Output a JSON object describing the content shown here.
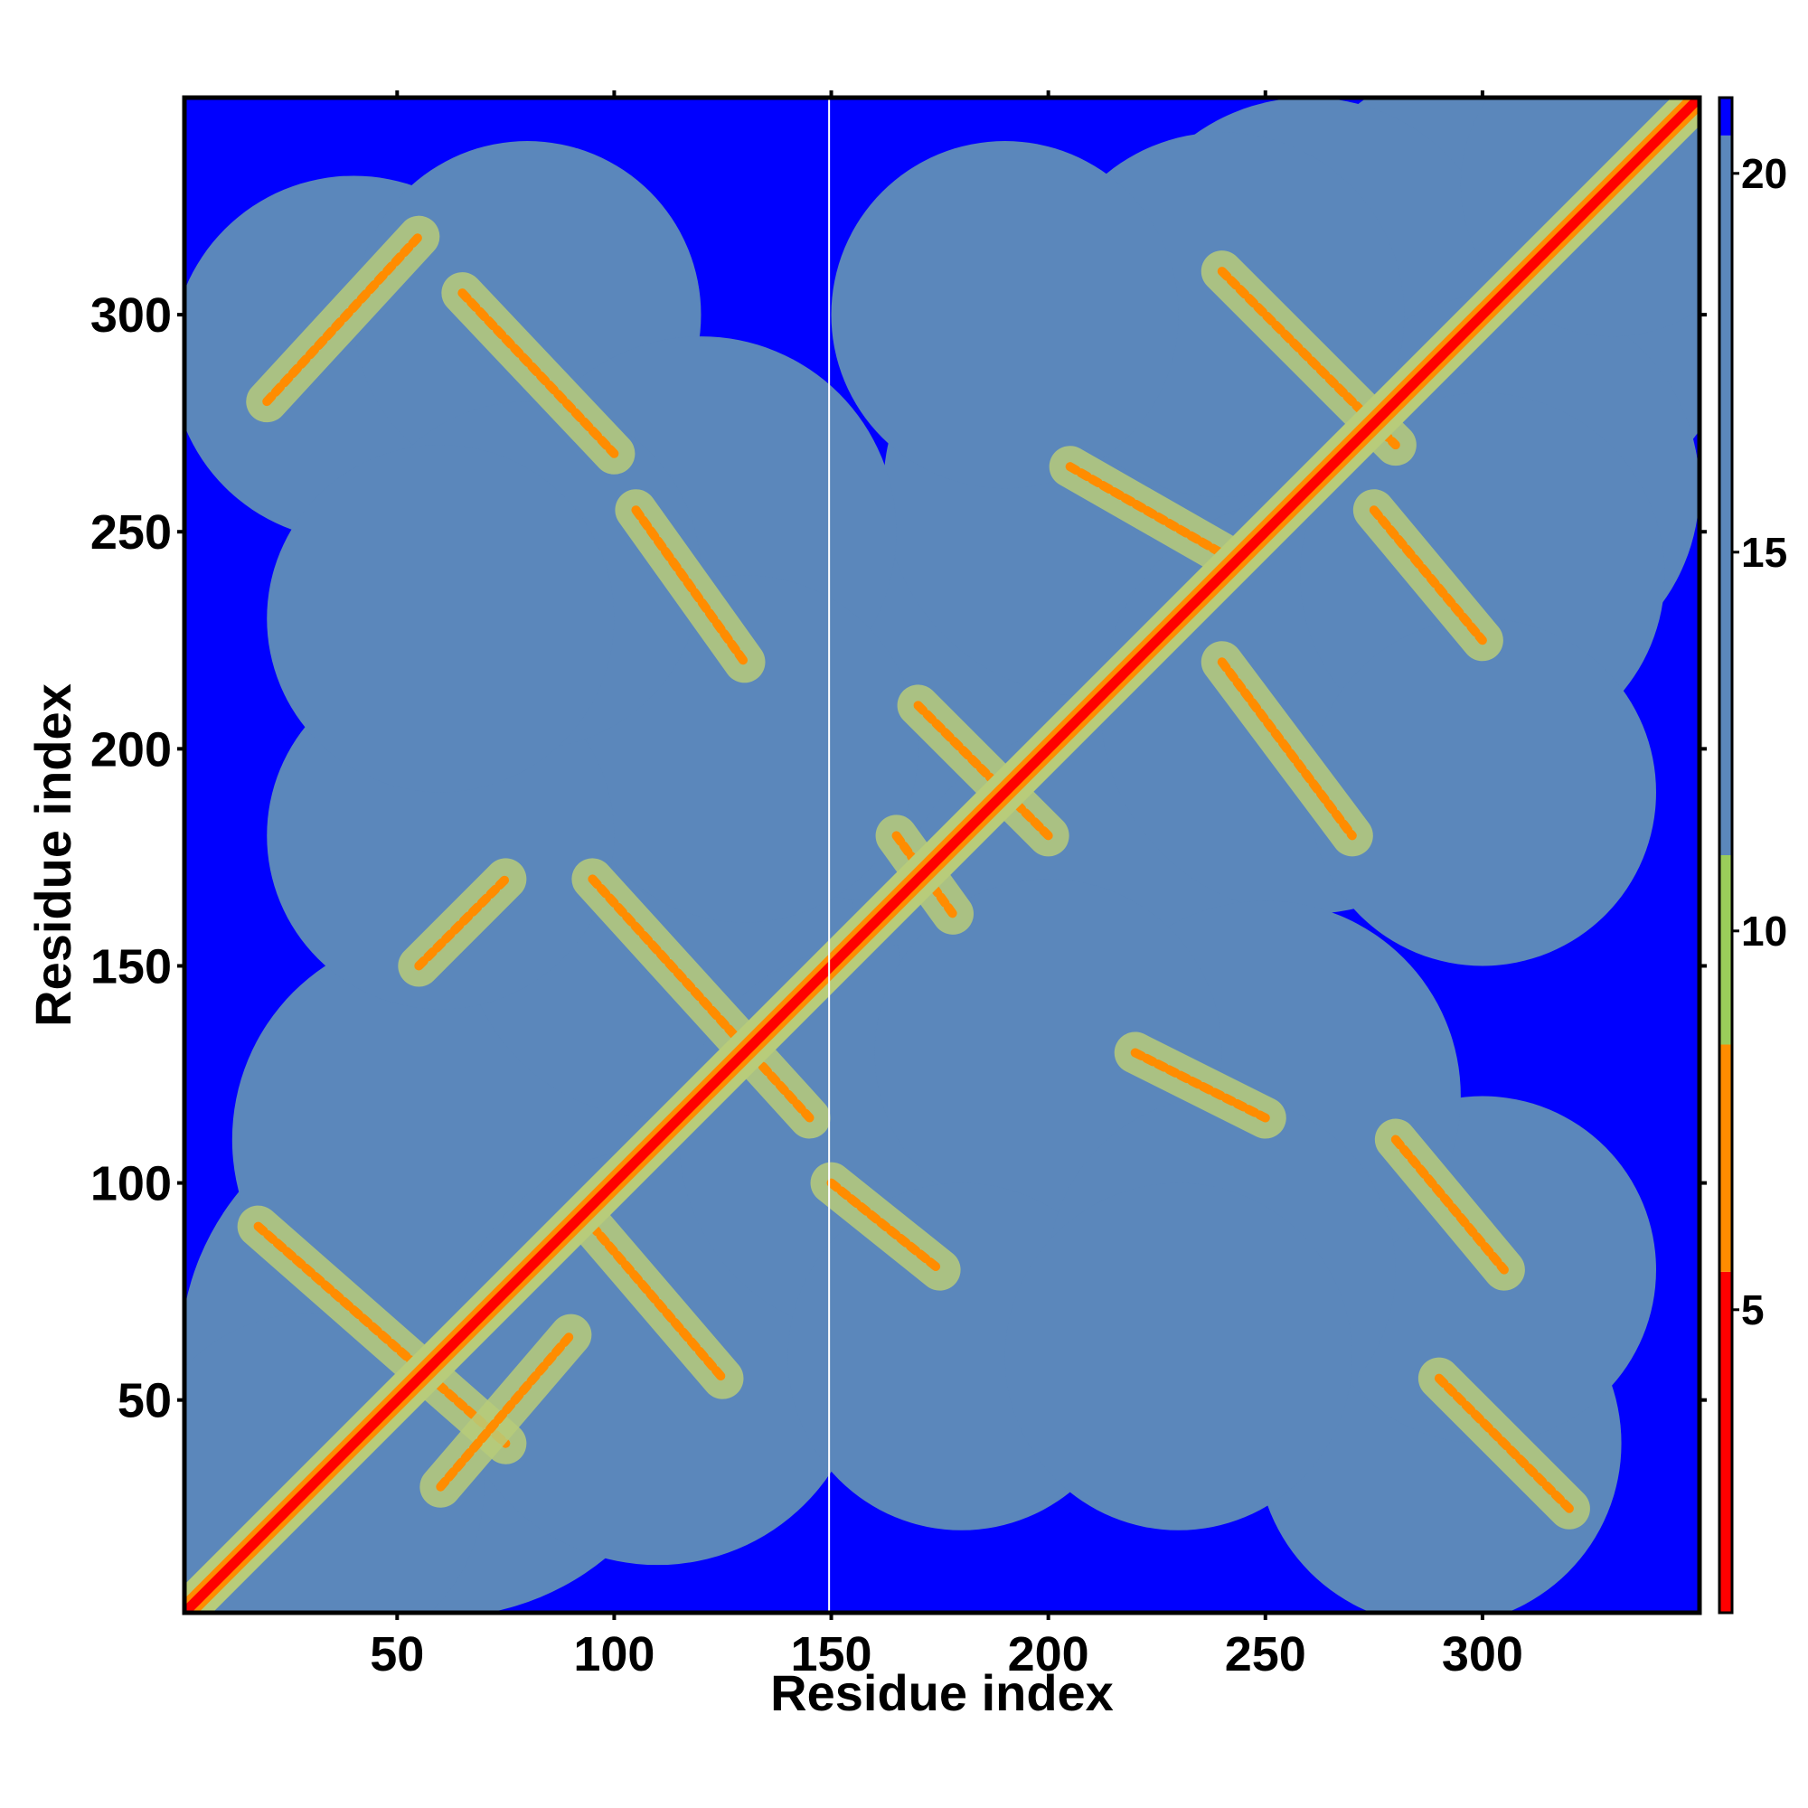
{
  "chart_data": {
    "type": "heatmap",
    "title": "",
    "xlabel": "Residue index",
    "ylabel": "Residue index",
    "xlim": [
      1,
      350
    ],
    "ylim": [
      1,
      350
    ],
    "x_ticks": [
      50,
      100,
      150,
      200,
      250,
      300
    ],
    "y_ticks": [
      50,
      100,
      150,
      200,
      250,
      300
    ],
    "colorbar": {
      "range": [
        1,
        21
      ],
      "ticks": [
        5,
        10,
        15,
        20
      ],
      "bands": [
        {
          "from": 1,
          "to": 5.5,
          "color": "#ff0000"
        },
        {
          "from": 5.5,
          "to": 8.5,
          "color": "#ff8c00"
        },
        {
          "from": 8.5,
          "to": 11,
          "color": "#9acd5a"
        },
        {
          "from": 11,
          "to": 20.5,
          "color": "#5b87bb"
        },
        {
          "from": 20.5,
          "to": 21,
          "color": "#0000ff"
        }
      ]
    },
    "colors": {
      "far": "#0000ff",
      "mid": "#5b87bb",
      "near": "#b8cc7a",
      "close": "#ff8c00",
      "contact": "#ff0000"
    },
    "diagonal_band": {
      "from": [
        1,
        1
      ],
      "to": [
        350,
        350
      ]
    },
    "off_diagonal_bands": [
      {
        "from": [
          20,
          280
        ],
        "to": [
          55,
          318
        ]
      },
      {
        "from": [
          65,
          305
        ],
        "to": [
          100,
          268
        ]
      },
      {
        "from": [
          95,
          170
        ],
        "to": [
          145,
          115
        ]
      },
      {
        "from": [
          18,
          90
        ],
        "to": [
          75,
          40
        ]
      },
      {
        "from": [
          60,
          30
        ],
        "to": [
          90,
          65
        ]
      },
      {
        "from": [
          105,
          255
        ],
        "to": [
          130,
          220
        ]
      },
      {
        "from": [
          95,
          90
        ],
        "to": [
          125,
          55
        ]
      },
      {
        "from": [
          150,
          100
        ],
        "to": [
          175,
          80
        ]
      },
      {
        "from": [
          165,
          180
        ],
        "to": [
          178,
          162
        ]
      },
      {
        "from": [
          170,
          210
        ],
        "to": [
          200,
          180
        ]
      },
      {
        "from": [
          240,
          310
        ],
        "to": [
          280,
          270
        ]
      },
      {
        "from": [
          275,
          255
        ],
        "to": [
          300,
          225
        ]
      },
      {
        "from": [
          240,
          220
        ],
        "to": [
          270,
          180
        ]
      },
      {
        "from": [
          220,
          130
        ],
        "to": [
          250,
          115
        ]
      },
      {
        "from": [
          280,
          110
        ],
        "to": [
          305,
          80
        ]
      },
      {
        "from": [
          290,
          55
        ],
        "to": [
          320,
          25
        ]
      },
      {
        "from": [
          55,
          150
        ],
        "to": [
          75,
          170
        ]
      },
      {
        "from": [
          205,
          265
        ],
        "to": [
          240,
          245
        ]
      }
    ]
  }
}
